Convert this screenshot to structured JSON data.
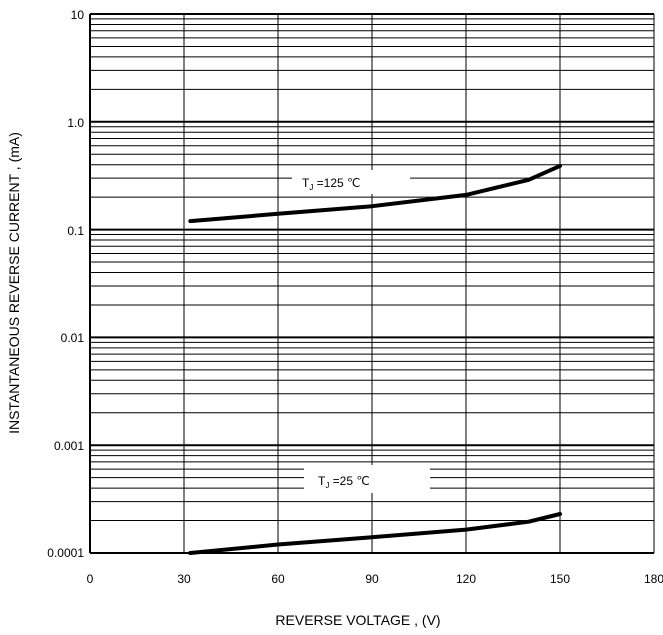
{
  "chart_data": {
    "type": "line",
    "xlabel": "REVERSE VOLTAGE , (V)",
    "ylabel": "INSTANTANEOUS REVERSE CURRENT , (mA)",
    "x_ticks": [
      "0",
      "30",
      "60",
      "90",
      "120",
      "150",
      "180"
    ],
    "y_ticks": [
      "0.0001",
      "0.001",
      "0.01",
      "0.1",
      "1.0",
      "10"
    ],
    "xlim": [
      0,
      180
    ],
    "ylim": [
      0.0001,
      10
    ],
    "yscale": "log",
    "grid": true,
    "series": [
      {
        "name": "TJ =125 ℃",
        "label_main": "T",
        "label_sub": "J",
        "label_rest": " =125 ℃",
        "x": [
          32,
          60,
          90,
          120,
          140,
          150
        ],
        "y": [
          0.12,
          0.14,
          0.165,
          0.21,
          0.29,
          0.39
        ]
      },
      {
        "name": "TJ =25 ℃",
        "label_main": "T",
        "label_sub": "J",
        "label_rest": " =25 ℃",
        "x": [
          32,
          60,
          90,
          120,
          140,
          150
        ],
        "y": [
          0.0001,
          0.00012,
          0.00014,
          0.000165,
          0.000195,
          0.00023
        ]
      }
    ]
  }
}
